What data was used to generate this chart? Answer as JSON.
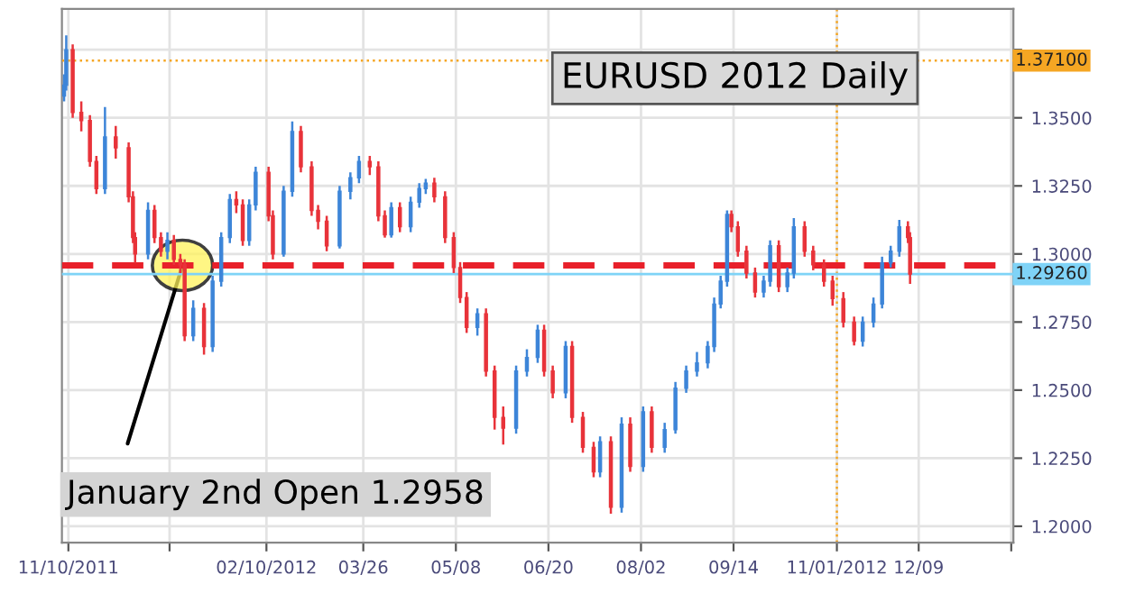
{
  "chart_data": {
    "type": "candlestick",
    "title": "EURUSD 2012 Daily",
    "x": [
      "2011-11-08",
      "2011-11-09",
      "2011-11-12",
      "2011-11-16",
      "2011-11-20",
      "2011-11-23",
      "2011-11-27",
      "2011-12-02",
      "2011-12-08",
      "2011-12-10",
      "2011-12-11",
      "2011-12-17",
      "2011-12-20",
      "2011-12-23",
      "2011-12-26",
      "2011-12-29",
      "2012-01-01",
      "2012-01-03",
      "2012-01-07",
      "2012-01-12",
      "2012-01-16",
      "2012-01-20",
      "2012-01-24",
      "2012-01-27",
      "2012-01-30",
      "2012-02-02",
      "2012-02-05",
      "2012-02-11",
      "2012-02-13",
      "2012-02-18",
      "2012-02-22",
      "2012-02-26",
      "2012-03-02",
      "2012-03-05",
      "2012-03-09",
      "2012-03-15",
      "2012-03-20",
      "2012-03-24",
      "2012-03-29",
      "2012-04-02",
      "2012-04-05",
      "2012-04-08",
      "2012-04-12",
      "2012-04-17",
      "2012-04-21",
      "2012-04-24",
      "2012-04-28",
      "2012-05-03",
      "2012-05-07",
      "2012-05-10",
      "2012-05-13",
      "2012-05-18",
      "2012-05-22",
      "2012-05-26",
      "2012-05-30",
      "2012-06-05",
      "2012-06-10",
      "2012-06-15",
      "2012-06-18",
      "2012-06-22",
      "2012-06-28",
      "2012-07-01",
      "2012-07-06",
      "2012-07-11",
      "2012-07-14",
      "2012-07-19",
      "2012-07-24",
      "2012-07-28",
      "2012-08-03",
      "2012-08-07",
      "2012-08-13",
      "2012-08-18",
      "2012-08-23",
      "2012-08-28",
      "2012-09-02",
      "2012-09-05",
      "2012-09-08",
      "2012-09-11",
      "2012-09-13",
      "2012-09-16",
      "2012-09-20",
      "2012-09-24",
      "2012-09-28",
      "2012-10-01",
      "2012-10-05",
      "2012-10-09",
      "2012-10-12",
      "2012-10-17",
      "2012-10-21",
      "2012-10-26",
      "2012-10-30",
      "2012-11-04",
      "2012-11-09",
      "2012-11-13",
      "2012-11-18",
      "2012-11-22",
      "2012-11-26",
      "2012-11-30",
      "2012-12-04",
      "2012-12-05"
    ],
    "ohlc": [
      [
        1.358,
        1.366,
        1.356,
        1.362
      ],
      [
        1.362,
        1.3803,
        1.36,
        1.375
      ],
      [
        1.375,
        1.377,
        1.35,
        1.352
      ],
      [
        1.352,
        1.356,
        1.345,
        1.349
      ],
      [
        1.349,
        1.351,
        1.332,
        1.334
      ],
      [
        1.334,
        1.336,
        1.322,
        1.324
      ],
      [
        1.324,
        1.354,
        1.322,
        1.343
      ],
      [
        1.343,
        1.347,
        1.335,
        1.339
      ],
      [
        1.339,
        1.341,
        1.319,
        1.321
      ],
      [
        1.321,
        1.323,
        1.304,
        1.306
      ],
      [
        1.306,
        1.308,
        1.2967,
        1.3
      ],
      [
        1.3,
        1.319,
        1.298,
        1.316
      ],
      [
        1.316,
        1.318,
        1.304,
        1.306
      ],
      [
        1.306,
        1.308,
        1.299,
        1.301
      ],
      [
        1.301,
        1.308,
        1.298,
        1.305
      ],
      [
        1.305,
        1.307,
        1.296,
        1.298
      ],
      [
        1.298,
        1.3,
        1.293,
        1.296
      ],
      [
        1.296,
        1.298,
        1.268,
        1.27
      ],
      [
        1.27,
        1.283,
        1.268,
        1.28
      ],
      [
        1.28,
        1.282,
        1.263,
        1.266
      ],
      [
        1.266,
        1.292,
        1.264,
        1.29
      ],
      [
        1.29,
        1.308,
        1.288,
        1.306
      ],
      [
        1.306,
        1.322,
        1.304,
        1.32
      ],
      [
        1.32,
        1.323,
        1.315,
        1.318
      ],
      [
        1.318,
        1.32,
        1.303,
        1.305
      ],
      [
        1.305,
        1.32,
        1.303,
        1.318
      ],
      [
        1.318,
        1.332,
        1.316,
        1.33
      ],
      [
        1.33,
        1.332,
        1.312,
        1.314
      ],
      [
        1.314,
        1.316,
        1.298,
        1.3
      ],
      [
        1.3,
        1.325,
        1.299,
        1.323
      ],
      [
        1.323,
        1.3487,
        1.321,
        1.345
      ],
      [
        1.345,
        1.347,
        1.33,
        1.332
      ],
      [
        1.332,
        1.334,
        1.314,
        1.316
      ],
      [
        1.316,
        1.318,
        1.309,
        1.312
      ],
      [
        1.312,
        1.314,
        1.301,
        1.303
      ],
      [
        1.303,
        1.325,
        1.302,
        1.323
      ],
      [
        1.323,
        1.33,
        1.32,
        1.328
      ],
      [
        1.328,
        1.336,
        1.326,
        1.334
      ],
      [
        1.334,
        1.336,
        1.329,
        1.332
      ],
      [
        1.332,
        1.334,
        1.312,
        1.314
      ],
      [
        1.314,
        1.316,
        1.306,
        1.307
      ],
      [
        1.307,
        1.319,
        1.306,
        1.317
      ],
      [
        1.317,
        1.319,
        1.308,
        1.31
      ],
      [
        1.31,
        1.321,
        1.308,
        1.319
      ],
      [
        1.319,
        1.326,
        1.317,
        1.324
      ],
      [
        1.324,
        1.3276,
        1.322,
        1.326
      ],
      [
        1.326,
        1.328,
        1.319,
        1.321
      ],
      [
        1.321,
        1.323,
        1.304,
        1.306
      ],
      [
        1.306,
        1.308,
        1.293,
        1.295
      ],
      [
        1.295,
        1.297,
        1.282,
        1.284
      ],
      [
        1.284,
        1.286,
        1.271,
        1.273
      ],
      [
        1.273,
        1.28,
        1.27,
        1.278
      ],
      [
        1.278,
        1.28,
        1.255,
        1.257
      ],
      [
        1.257,
        1.259,
        1.2355,
        1.24
      ],
      [
        1.24,
        1.244,
        1.23,
        1.236
      ],
      [
        1.236,
        1.259,
        1.234,
        1.257
      ],
      [
        1.257,
        1.265,
        1.255,
        1.262
      ],
      [
        1.262,
        1.274,
        1.26,
        1.272
      ],
      [
        1.272,
        1.274,
        1.255,
        1.257
      ],
      [
        1.257,
        1.259,
        1.247,
        1.249
      ],
      [
        1.249,
        1.268,
        1.247,
        1.266
      ],
      [
        1.266,
        1.268,
        1.238,
        1.24
      ],
      [
        1.24,
        1.242,
        1.227,
        1.229
      ],
      [
        1.229,
        1.231,
        1.218,
        1.22
      ],
      [
        1.22,
        1.233,
        1.218,
        1.231
      ],
      [
        1.231,
        1.233,
        1.2046,
        1.207
      ],
      [
        1.207,
        1.24,
        1.205,
        1.2375
      ],
      [
        1.2375,
        1.24,
        1.22,
        1.222
      ],
      [
        1.222,
        1.244,
        1.22,
        1.242
      ],
      [
        1.242,
        1.244,
        1.227,
        1.229
      ],
      [
        1.229,
        1.238,
        1.227,
        1.2355
      ],
      [
        1.2355,
        1.253,
        1.234,
        1.2507
      ],
      [
        1.2507,
        1.259,
        1.249,
        1.257
      ],
      [
        1.257,
        1.264,
        1.255,
        1.26
      ],
      [
        1.26,
        1.268,
        1.258,
        1.266
      ],
      [
        1.266,
        1.284,
        1.264,
        1.2816
      ],
      [
        1.2816,
        1.292,
        1.28,
        1.29
      ],
      [
        1.29,
        1.316,
        1.288,
        1.3145
      ],
      [
        1.3145,
        1.316,
        1.308,
        1.31
      ],
      [
        1.31,
        1.312,
        1.299,
        1.301
      ],
      [
        1.301,
        1.303,
        1.291,
        1.293
      ],
      [
        1.293,
        1.295,
        1.284,
        1.286
      ],
      [
        1.286,
        1.292,
        1.284,
        1.29
      ],
      [
        1.29,
        1.305,
        1.288,
        1.303
      ],
      [
        1.303,
        1.305,
        1.286,
        1.288
      ],
      [
        1.288,
        1.295,
        1.286,
        1.293
      ],
      [
        1.293,
        1.3132,
        1.291,
        1.31
      ],
      [
        1.31,
        1.312,
        1.299,
        1.301
      ],
      [
        1.301,
        1.303,
        1.294,
        1.296
      ],
      [
        1.296,
        1.298,
        1.288,
        1.29
      ],
      [
        1.29,
        1.292,
        1.281,
        1.2836
      ],
      [
        1.2836,
        1.286,
        1.273,
        1.275
      ],
      [
        1.275,
        1.277,
        1.2664,
        1.268
      ],
      [
        1.268,
        1.277,
        1.266,
        1.275
      ],
      [
        1.275,
        1.284,
        1.273,
        1.2816
      ],
      [
        1.2816,
        1.299,
        1.28,
        1.2967
      ],
      [
        1.2967,
        1.303,
        1.295,
        1.301
      ],
      [
        1.301,
        1.3125,
        1.299,
        1.31
      ],
      [
        1.31,
        1.312,
        1.304,
        1.306
      ],
      [
        1.306,
        1.308,
        1.289,
        1.2926
      ]
    ],
    "colors": [
      "#3d85d8",
      "#3d85d8",
      "#e8333a",
      "#e8333a",
      "#e8333a",
      "#e8333a",
      "#3d85d8",
      "#e8333a",
      "#e8333a",
      "#e8333a",
      "#e8333a",
      "#3d85d8",
      "#e8333a",
      "#e8333a",
      "#3d85d8",
      "#e8333a",
      "#e8333a",
      "#e8333a",
      "#3d85d8",
      "#e8333a",
      "#3d85d8",
      "#3d85d8",
      "#3d85d8",
      "#e8333a",
      "#e8333a",
      "#3d85d8",
      "#3d85d8",
      "#e8333a",
      "#e8333a",
      "#3d85d8",
      "#3d85d8",
      "#e8333a",
      "#e8333a",
      "#e8333a",
      "#e8333a",
      "#3d85d8",
      "#3d85d8",
      "#3d85d8",
      "#e8333a",
      "#e8333a",
      "#e8333a",
      "#3d85d8",
      "#e8333a",
      "#3d85d8",
      "#3d85d8",
      "#3d85d8",
      "#e8333a",
      "#e8333a",
      "#e8333a",
      "#e8333a",
      "#e8333a",
      "#3d85d8",
      "#e8333a",
      "#e8333a",
      "#e8333a",
      "#3d85d8",
      "#3d85d8",
      "#3d85d8",
      "#e8333a",
      "#e8333a",
      "#3d85d8",
      "#e8333a",
      "#e8333a",
      "#e8333a",
      "#3d85d8",
      "#e8333a",
      "#3d85d8",
      "#e8333a",
      "#3d85d8",
      "#e8333a",
      "#3d85d8",
      "#3d85d8",
      "#3d85d8",
      "#3d85d8",
      "#3d85d8",
      "#3d85d8",
      "#3d85d8",
      "#3d85d8",
      "#e8333a",
      "#e8333a",
      "#e8333a",
      "#e8333a",
      "#3d85d8",
      "#3d85d8",
      "#e8333a",
      "#3d85d8",
      "#3d85d8",
      "#e8333a",
      "#e8333a",
      "#e8333a",
      "#e8333a",
      "#e8333a",
      "#e8333a",
      "#3d85d8",
      "#3d85d8",
      "#3d85d8",
      "#3d85d8",
      "#3d85d8",
      "#e8333a",
      "#e8333a"
    ],
    "xlim": [
      "2011-11-07",
      "2013-01-22"
    ],
    "xticks": [
      {
        "value": "2011-11-10",
        "label": "11/10/2011"
      },
      {
        "value": "2011-12-27",
        "label": null
      },
      {
        "value": "2012-02-10",
        "label": "02/10/2012"
      },
      {
        "value": "2012-03-26",
        "label": "03/26"
      },
      {
        "value": "2012-05-08",
        "label": "05/08"
      },
      {
        "value": "2012-06-20",
        "label": "06/20"
      },
      {
        "value": "2012-08-02",
        "label": "08/02"
      },
      {
        "value": "2012-09-14",
        "label": "09/14"
      },
      {
        "value": "2012-11-01",
        "label": "11/01/2012"
      },
      {
        "value": "2012-12-09",
        "label": "12/09"
      },
      {
        "value": "2013-01-21",
        "label": null
      }
    ],
    "ylim": [
      1.194,
      1.39
    ],
    "yticks": [
      {
        "value": 1.2,
        "label": "1.2000"
      },
      {
        "value": 1.225,
        "label": "1.2250"
      },
      {
        "value": 1.25,
        "label": "1.2500"
      },
      {
        "value": 1.275,
        "label": "1.2750"
      },
      {
        "value": 1.3,
        "label": "1.3000"
      },
      {
        "value": 1.325,
        "label": "1.3250"
      },
      {
        "value": 1.35,
        "label": "1.3500"
      },
      {
        "value": 1.375,
        "label": null
      }
    ],
    "grid": true,
    "ref_lines": [
      {
        "axis": "y",
        "value": 1.2958,
        "color": "#e8202a",
        "line_style": "dashed"
      },
      {
        "axis": "y",
        "value": 1.371,
        "label": "1.37100",
        "color": "#f5a623",
        "line_style": "dotted"
      },
      {
        "axis": "y",
        "value": 1.2926,
        "label": "1.29260",
        "color": "#7fd3f7",
        "line_style": "solid"
      },
      {
        "axis": "x",
        "value": "2012-11-01",
        "color": "#f5a623",
        "line_style": "dotted"
      }
    ],
    "annotations": [
      {
        "text": "January 2nd Open 1.2958",
        "x": "2012-01-02",
        "y": 1.2958
      }
    ]
  }
}
